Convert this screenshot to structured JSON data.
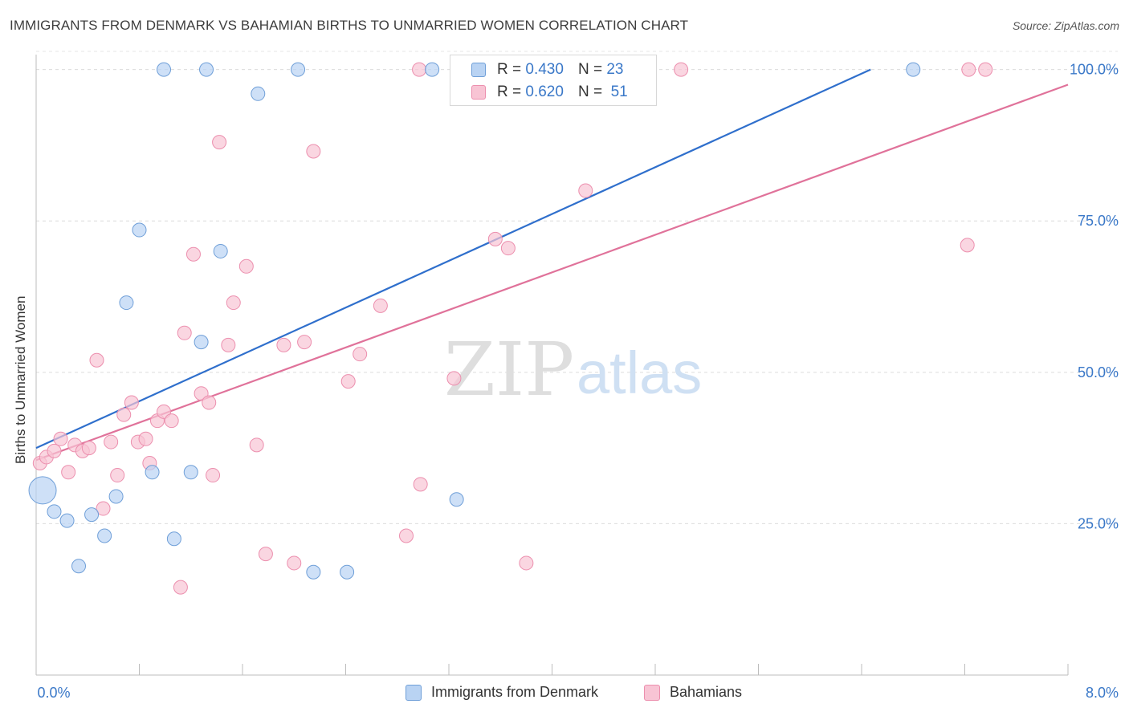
{
  "header": {
    "title": "IMMIGRANTS FROM DENMARK VS BAHAMIAN BIRTHS TO UNMARRIED WOMEN CORRELATION CHART",
    "source": "Source: ZipAtlas.com"
  },
  "watermark": {
    "zip": "ZIP",
    "atlas": "atlas"
  },
  "legend_stats": [
    {
      "r_label": "R =",
      "r_value": "0.430",
      "n_label": "N =",
      "n_value": "23",
      "color": "#b9d3f3"
    },
    {
      "r_label": "R =",
      "r_value": "0.620",
      "n_label": "N =",
      "n_value": "51",
      "color": "#f8c4d4"
    }
  ],
  "chart_data": {
    "type": "scatter",
    "title": "IMMIGRANTS FROM DENMARK VS BAHAMIAN BIRTHS TO UNMARRIED WOMEN CORRELATION CHART",
    "xlabel": "",
    "ylabel": "Births to Unmarried Women",
    "xlim": [
      0,
      8
    ],
    "ylim": [
      0,
      103
    ],
    "x_tick_labels": [
      "0.0%",
      "8.0%"
    ],
    "y_tick_labels": [
      "25.0%",
      "50.0%",
      "75.0%",
      "100.0%"
    ],
    "y_tick_values": [
      25,
      50,
      75,
      100
    ],
    "grid": true,
    "series": [
      {
        "name": "Immigrants from Denmark",
        "color": "#6f9fd8",
        "fill": "#b9d3f3",
        "trend": {
          "x": [
            0,
            6.47
          ],
          "y": [
            37.5,
            100
          ],
          "color": "#2f6fcc"
        },
        "points": [
          [
            0.05,
            30.5,
            1
          ],
          [
            0.14,
            27,
            0
          ],
          [
            0.24,
            25.5,
            0
          ],
          [
            0.33,
            18,
            0
          ],
          [
            0.43,
            26.5,
            0
          ],
          [
            0.53,
            23,
            0
          ],
          [
            0.62,
            29.5,
            0
          ],
          [
            0.7,
            61.5,
            0
          ],
          [
            0.8,
            73.5,
            0
          ],
          [
            0.9,
            33.5,
            0
          ],
          [
            0.99,
            100,
            0
          ],
          [
            1.07,
            22.5,
            0
          ],
          [
            1.2,
            33.5,
            0
          ],
          [
            1.28,
            55,
            0
          ],
          [
            1.32,
            100,
            0
          ],
          [
            1.43,
            70,
            0
          ],
          [
            1.72,
            96,
            0
          ],
          [
            2.03,
            100,
            0
          ],
          [
            2.15,
            17,
            0
          ],
          [
            2.41,
            17,
            0
          ],
          [
            3.07,
            100,
            0
          ],
          [
            3.26,
            29,
            0
          ],
          [
            6.8,
            100,
            0
          ]
        ]
      },
      {
        "name": "Bahamians",
        "color": "#ec8fae",
        "fill": "#f8c4d4",
        "trend": {
          "x": [
            0,
            8
          ],
          "y": [
            35.5,
            97.5
          ],
          "color": "#e0729a"
        },
        "points": [
          [
            0.03,
            35,
            0
          ],
          [
            0.08,
            36,
            0
          ],
          [
            0.14,
            37,
            0
          ],
          [
            0.19,
            39,
            0
          ],
          [
            0.25,
            33.5,
            0
          ],
          [
            0.3,
            38,
            0
          ],
          [
            0.36,
            37,
            0
          ],
          [
            0.41,
            37.5,
            0
          ],
          [
            0.47,
            52,
            0
          ],
          [
            0.52,
            27.5,
            0
          ],
          [
            0.58,
            38.5,
            0
          ],
          [
            0.63,
            33,
            0
          ],
          [
            0.68,
            43,
            0
          ],
          [
            0.74,
            45,
            0
          ],
          [
            0.79,
            38.5,
            0
          ],
          [
            0.85,
            39,
            0
          ],
          [
            0.88,
            35,
            0
          ],
          [
            0.94,
            42,
            0
          ],
          [
            0.99,
            43.5,
            0
          ],
          [
            1.05,
            42,
            0
          ],
          [
            1.12,
            14.5,
            0
          ],
          [
            1.15,
            56.5,
            0
          ],
          [
            1.22,
            69.5,
            0
          ],
          [
            1.28,
            46.5,
            0
          ],
          [
            1.34,
            45,
            0
          ],
          [
            1.37,
            33,
            0
          ],
          [
            1.42,
            88,
            0
          ],
          [
            1.49,
            54.5,
            0
          ],
          [
            1.53,
            61.5,
            0
          ],
          [
            1.63,
            67.5,
            0
          ],
          [
            1.71,
            38,
            0
          ],
          [
            1.78,
            20,
            0
          ],
          [
            1.92,
            54.5,
            0
          ],
          [
            2.0,
            18.5,
            0
          ],
          [
            2.08,
            55,
            0
          ],
          [
            2.15,
            86.5,
            0
          ],
          [
            2.42,
            48.5,
            0
          ],
          [
            2.51,
            53,
            0
          ],
          [
            2.67,
            61,
            0
          ],
          [
            2.87,
            23,
            0
          ],
          [
            2.97,
            100,
            0
          ],
          [
            2.98,
            31.5,
            0
          ],
          [
            3.24,
            49,
            0
          ],
          [
            3.56,
            72,
            0
          ],
          [
            3.66,
            70.5,
            0
          ],
          [
            3.8,
            18.5,
            0
          ],
          [
            4.26,
            80,
            0
          ],
          [
            5.0,
            100,
            0
          ],
          [
            7.22,
            71,
            0
          ],
          [
            7.23,
            100,
            0
          ],
          [
            7.36,
            100,
            0
          ]
        ]
      }
    ]
  }
}
